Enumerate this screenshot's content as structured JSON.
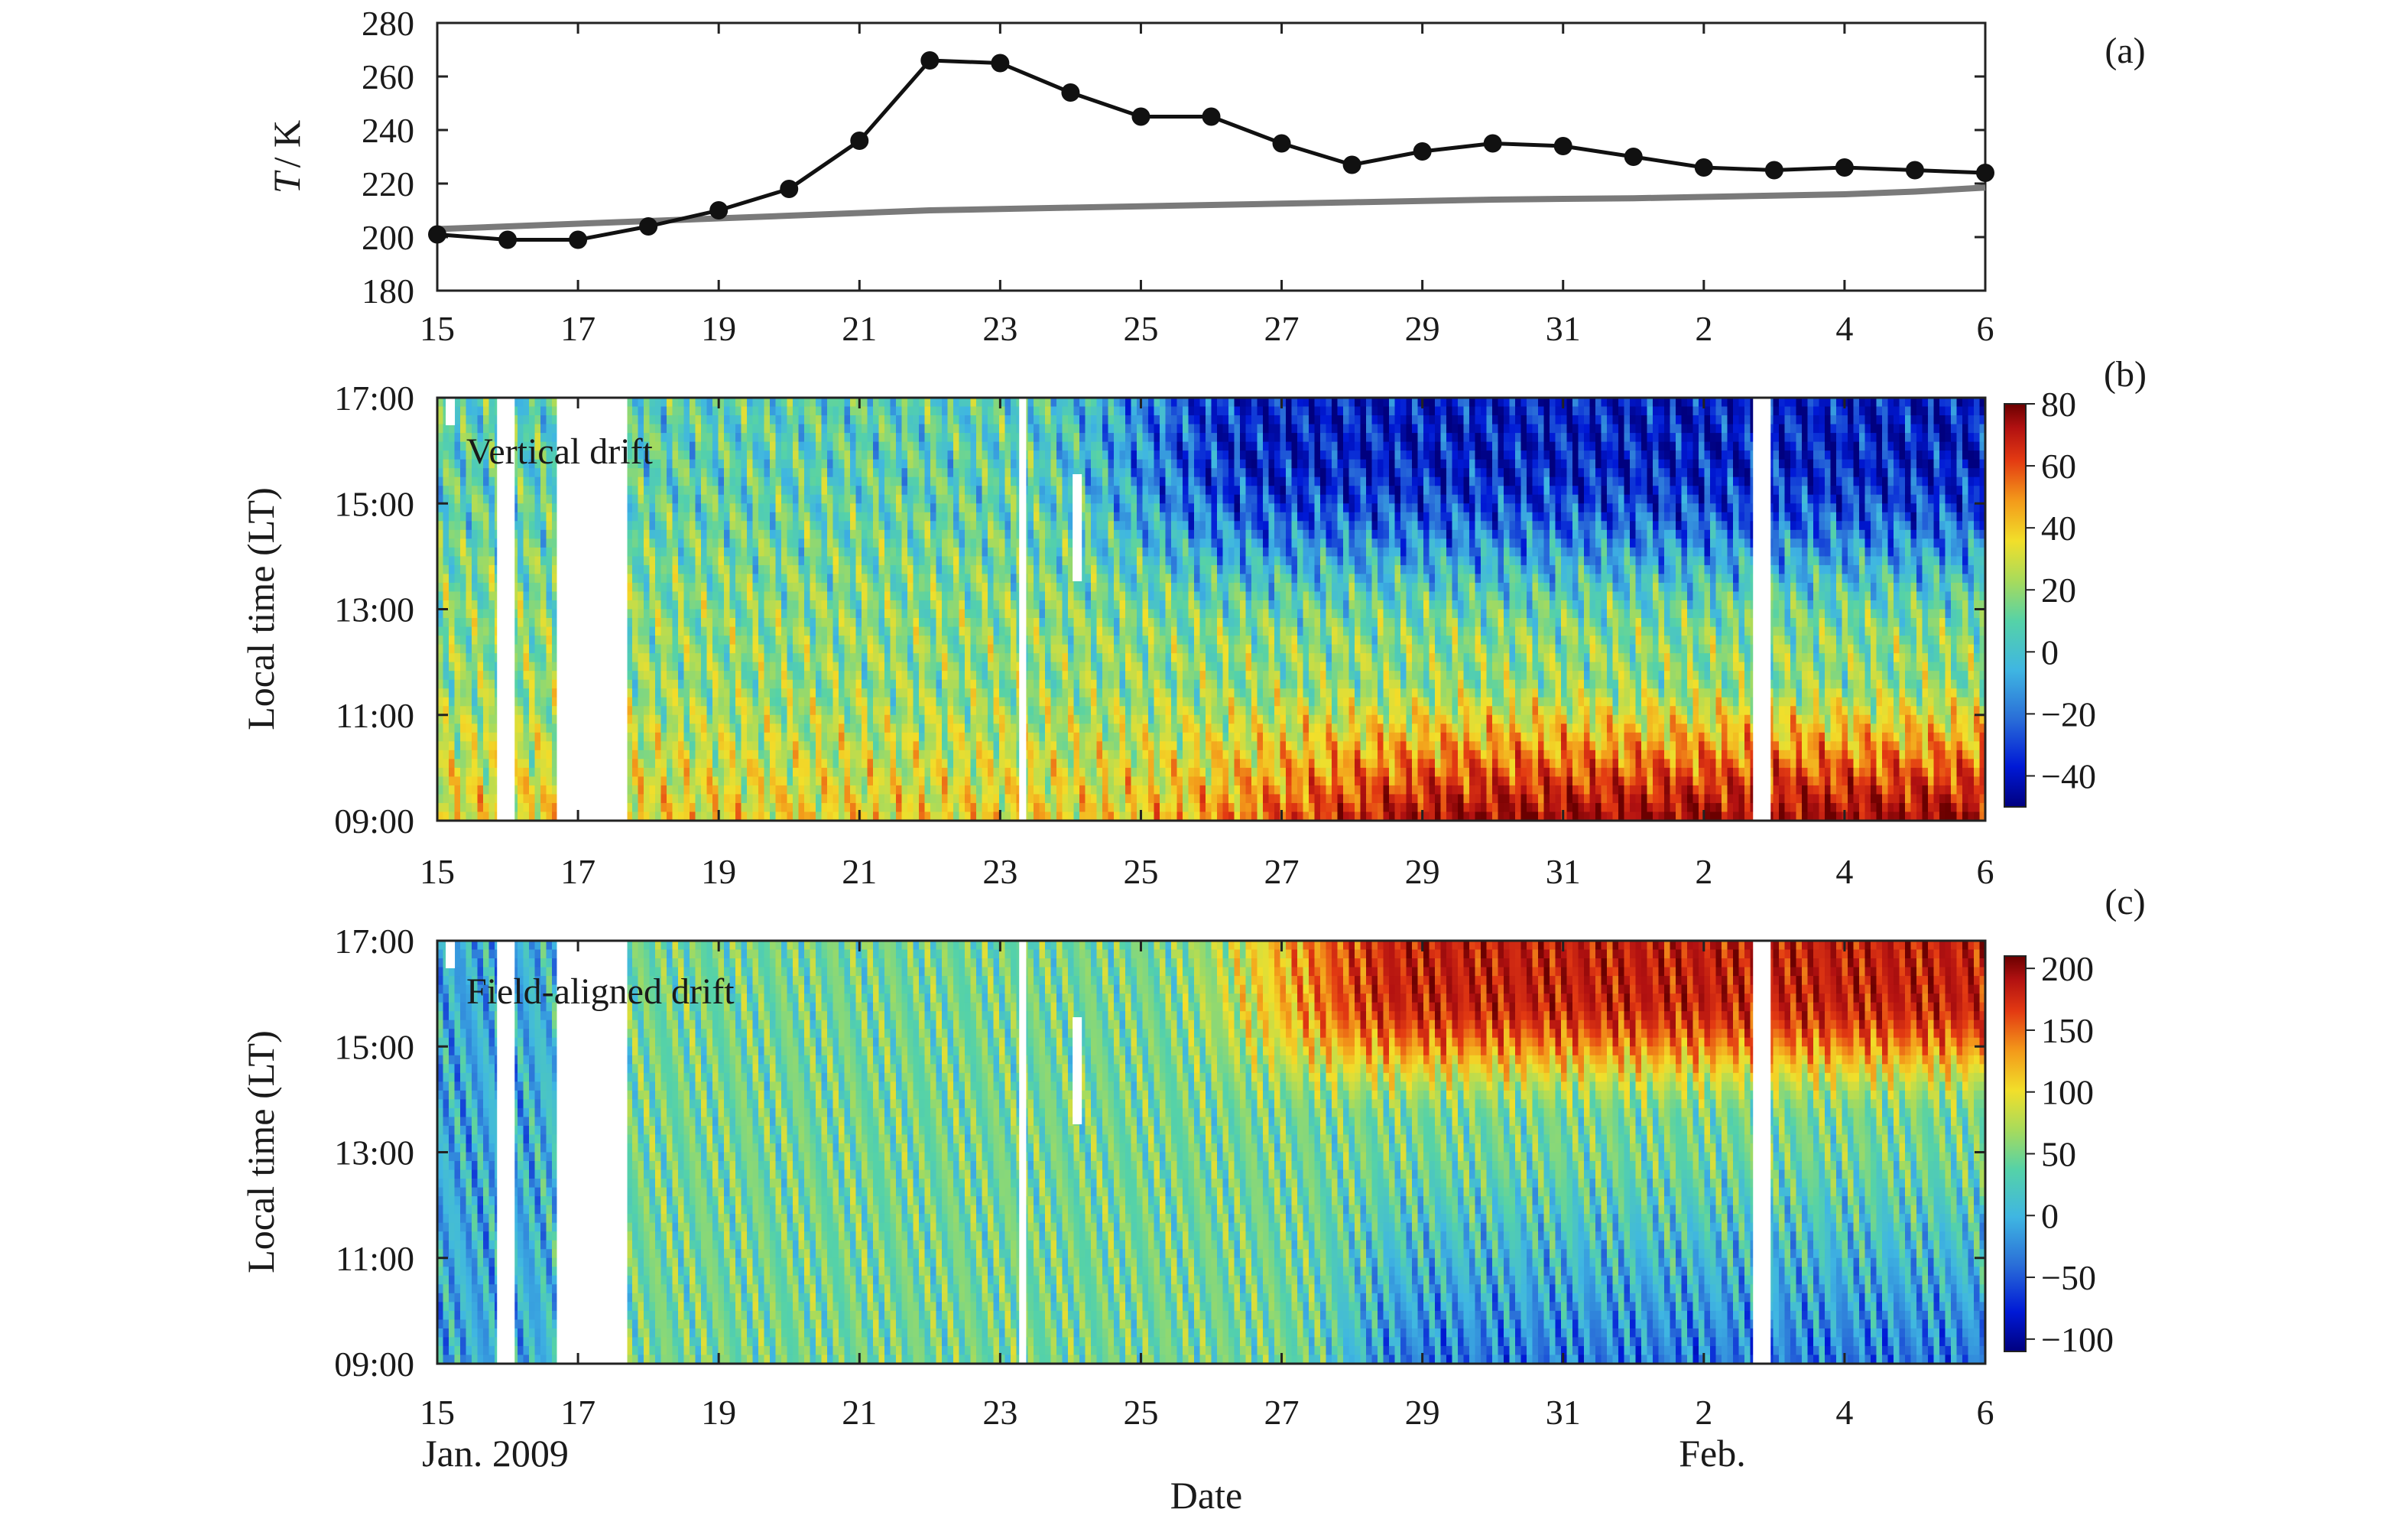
{
  "chart_data": [
    {
      "panel": "(a)",
      "type": "line",
      "ylabel_italic": "T",
      "ylabel_unit": "/ K",
      "ylim": [
        180,
        280
      ],
      "yticks": [
        "280",
        "260",
        "240",
        "220",
        "200",
        "180"
      ],
      "xticks": [
        "15",
        "17",
        "19",
        "21",
        "23",
        "25",
        "27",
        "29",
        "31",
        "2",
        "4",
        "6"
      ],
      "x": [
        "Jan 15",
        "Jan 16",
        "Jan 17",
        "Jan 18",
        "Jan 19",
        "Jan 20",
        "Jan 21",
        "Jan 22",
        "Jan 23",
        "Jan 24",
        "Jan 25",
        "Jan 26",
        "Jan 27",
        "Jan 28",
        "Jan 29",
        "Jan 30",
        "Jan 31",
        "Feb 1",
        "Feb 2",
        "Feb 3",
        "Feb 4",
        "Feb 5",
        "Feb 6"
      ],
      "series": [
        {
          "color": "#111111",
          "markers": true,
          "values": [
            201,
            199,
            199,
            204,
            210,
            218,
            236,
            266,
            265,
            254,
            245,
            245,
            235,
            227,
            232,
            235,
            234,
            230,
            226,
            225,
            226,
            225,
            224
          ]
        },
        {
          "color": "#7a7a7a",
          "markers": false,
          "values": [
            203,
            204,
            205,
            206,
            207,
            208,
            209,
            210,
            210.5,
            211,
            211.5,
            212,
            212.5,
            213,
            213.5,
            214,
            214.3,
            214.5,
            215,
            215.5,
            216,
            217,
            218.5
          ]
        }
      ]
    },
    {
      "panel": "(b)",
      "type": "heatmap",
      "inset_label": "Vertical drift",
      "ylabel": "Local time (LT)",
      "yticks": [
        "17:00",
        "15:00",
        "13:00",
        "11:00",
        "09:00"
      ],
      "xticks": [
        "15",
        "17",
        "19",
        "21",
        "23",
        "25",
        "27",
        "29",
        "31",
        "2",
        "4",
        "6"
      ],
      "colorbar_ticks": [
        "80",
        "60",
        "40",
        "20",
        "0",
        "−20",
        "−40"
      ],
      "colorbar_range": [
        -50,
        80
      ]
    },
    {
      "panel": "(c)",
      "type": "heatmap",
      "inset_label": "Field-aligned drift",
      "ylabel": "Local time (LT)",
      "yticks": [
        "17:00",
        "15:00",
        "13:00",
        "11:00",
        "09:00"
      ],
      "xticks": [
        "15",
        "17",
        "19",
        "21",
        "23",
        "25",
        "27",
        "29",
        "31",
        "2",
        "4",
        "6"
      ],
      "colorbar_ticks": [
        "200",
        "150",
        "100",
        "50",
        "0",
        "−50",
        "−100"
      ],
      "colorbar_range": [
        -110,
        210
      ]
    }
  ],
  "xaxis": {
    "label": "Date",
    "sub_left": "Jan. 2009",
    "sub_right": "Feb."
  },
  "colors": {
    "jet": [
      "#00007f",
      "#0019d6",
      "#2a6fd8",
      "#3fb6e2",
      "#55d2a8",
      "#a7db5c",
      "#f2df2a",
      "#f39a1a",
      "#e33a12",
      "#b21111",
      "#6b0000"
    ]
  }
}
